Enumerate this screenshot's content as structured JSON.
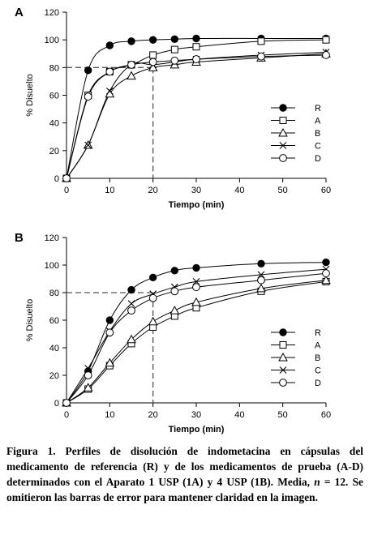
{
  "chart_data": [
    {
      "type": "line",
      "panel_label": "A",
      "xlabel": "Tiempo (min)",
      "ylabel": "% Disuelto",
      "xlim": [
        0,
        60
      ],
      "ylim": [
        0,
        120
      ],
      "xticks": [
        0,
        10,
        20,
        30,
        40,
        50,
        60
      ],
      "yticks": [
        0,
        20,
        40,
        60,
        80,
        100,
        120
      ],
      "legend_position": "bottom-right",
      "x": [
        0,
        5,
        10,
        15,
        20,
        25,
        30,
        45,
        60
      ],
      "reference_lines": {
        "y": 80,
        "x": 20
      },
      "series": [
        {
          "name": "R",
          "marker": "filled-circle",
          "values": [
            0,
            78,
            96,
            99,
            100,
            100.5,
            101,
            101,
            101
          ]
        },
        {
          "name": "A",
          "marker": "square",
          "values": [
            0,
            60,
            77,
            82,
            89,
            93,
            95,
            99,
            100
          ]
        },
        {
          "name": "B",
          "marker": "triangle",
          "values": [
            0,
            24,
            61,
            74,
            80,
            82,
            84,
            87,
            90
          ]
        },
        {
          "name": "C",
          "marker": "x",
          "values": [
            0,
            24,
            63,
            82,
            82,
            84,
            86,
            89,
            91
          ]
        },
        {
          "name": "D",
          "marker": "circle",
          "values": [
            0,
            59,
            77,
            82,
            84,
            85,
            86,
            88,
            89
          ]
        }
      ]
    },
    {
      "type": "line",
      "panel_label": "B",
      "xlabel": "Tiempo (min)",
      "ylabel": "% Disuelto",
      "xlim": [
        0,
        60
      ],
      "ylim": [
        0,
        120
      ],
      "xticks": [
        0,
        10,
        20,
        30,
        40,
        50,
        60
      ],
      "yticks": [
        0,
        20,
        40,
        60,
        80,
        100,
        120
      ],
      "legend_position": "bottom-right",
      "x": [
        0,
        5,
        10,
        15,
        20,
        25,
        30,
        45,
        60
      ],
      "reference_lines": {
        "y": 80,
        "x": 20
      },
      "series": [
        {
          "name": "R",
          "marker": "filled-circle",
          "values": [
            0,
            23,
            60,
            82,
            91,
            96,
            98,
            101,
            102
          ]
        },
        {
          "name": "A",
          "marker": "square",
          "values": [
            0,
            10,
            27,
            43,
            55,
            63,
            69,
            81,
            88
          ]
        },
        {
          "name": "B",
          "marker": "triangle",
          "values": [
            0,
            11,
            29,
            46,
            59,
            67,
            73,
            83,
            89
          ]
        },
        {
          "name": "C",
          "marker": "x",
          "values": [
            0,
            25,
            52,
            72,
            79,
            84,
            88,
            93,
            97
          ]
        },
        {
          "name": "D",
          "marker": "circle",
          "values": [
            0,
            20,
            51,
            67,
            76,
            81,
            84,
            89,
            94
          ]
        }
      ]
    }
  ],
  "caption": {
    "part1": "Figura 1. Perfiles de disolución de indometacina en cápsulas del medicamento de referencia (R) y de los medicamentos de prueba (A-D) determinados con el Aparato 1 USP (1A) y 4 USP (1B). Media, ",
    "n_symbol": "n",
    "part2": " = 12. Se omitieron las barras de error para mantener claridad en la imagen."
  }
}
